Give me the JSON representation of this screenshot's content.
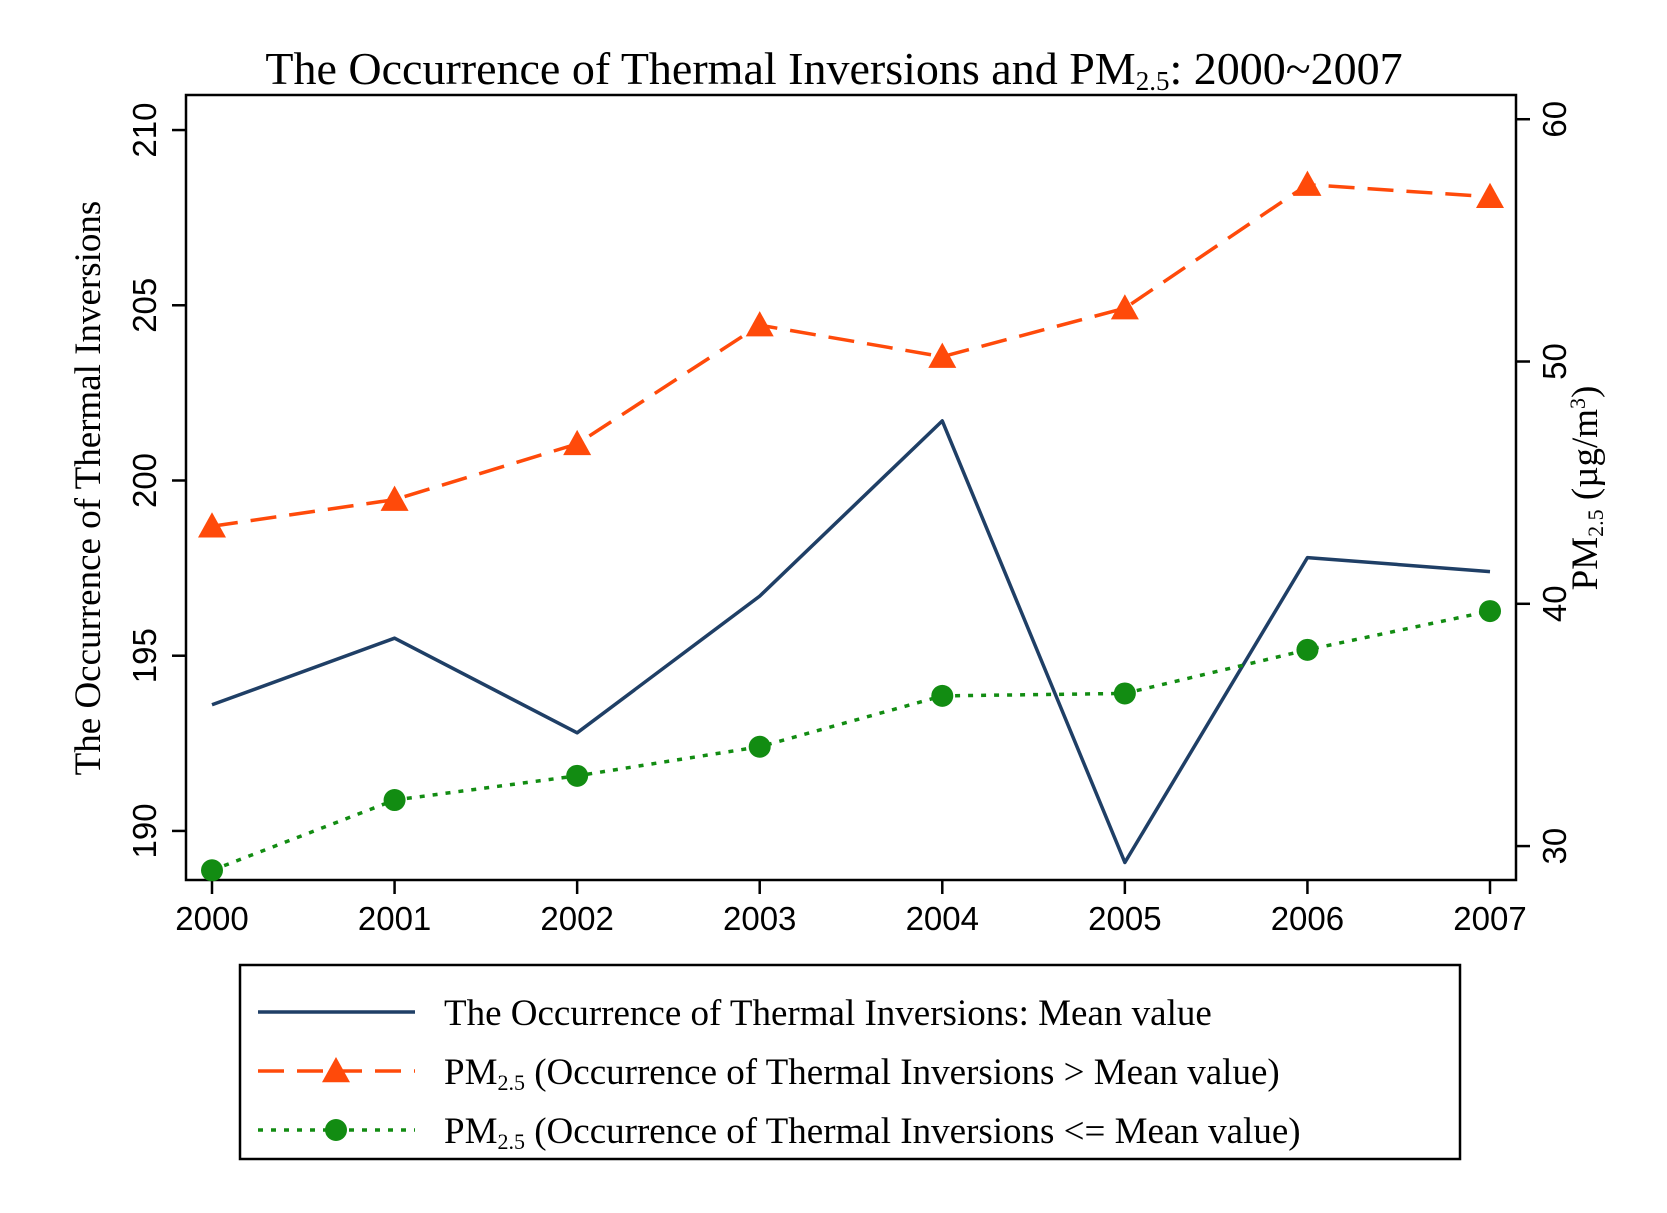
{
  "chart_data": {
    "type": "line",
    "title": {
      "pre": "The Occurrence of Thermal Inversions and PM",
      "sub": "2.5",
      "post": ": 2000~2007"
    },
    "ylabel_left": "The Occurrence of Thermal Inversions",
    "ylabel_right": {
      "pre": "PM",
      "sub": "2.5",
      "post": " (µg/m",
      "sup": "3",
      "end": ")"
    },
    "x": [
      "2000",
      "2001",
      "2002",
      "2003",
      "2004",
      "2005",
      "2006",
      "2007"
    ],
    "y_left": {
      "ticks": [
        "190",
        "195",
        "200",
        "205",
        "210"
      ],
      "range": [
        188.6,
        211
      ]
    },
    "y_right": {
      "ticks": [
        "30",
        "40",
        "50",
        "60"
      ],
      "range": [
        28.6,
        61
      ]
    },
    "series": [
      {
        "legend_pre": "The Occurrence of Thermal Inversions: Mean value",
        "legend_sub": "",
        "legend_post": "",
        "axis": "left",
        "style": "solid",
        "marker": "none",
        "color": "#1f3f66",
        "values": [
          193.6,
          195.5,
          192.8,
          196.7,
          201.7,
          189.1,
          197.8,
          197.4
        ]
      },
      {
        "legend_pre": "PM",
        "legend_sub": "2.5",
        "legend_post": " (Occurrence of Thermal Inversions > Mean value)",
        "axis": "right",
        "style": "dashed",
        "marker": "triangle",
        "color": "#ff4a0a",
        "values": [
          43.2,
          44.3,
          46.6,
          51.5,
          50.2,
          52.2,
          57.3,
          56.8
        ]
      },
      {
        "legend_pre": "PM",
        "legend_sub": "2.5",
        "legend_post": " (Occurrence of Thermal Inversions <= Mean value)",
        "axis": "right",
        "style": "dotted",
        "marker": "circle",
        "color": "#128c12",
        "values": [
          29.0,
          31.9,
          32.9,
          34.1,
          36.2,
          36.3,
          38.1,
          39.7
        ]
      }
    ],
    "legend_position": "bottom",
    "grid": false
  }
}
